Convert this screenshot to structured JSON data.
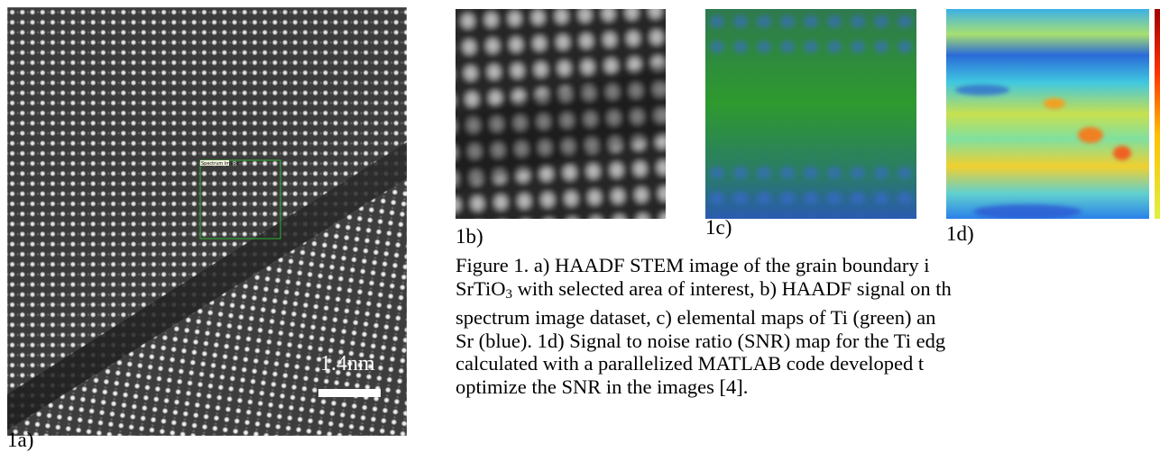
{
  "figure": {
    "panel_a": {
      "box_label": "Spectrum Image",
      "scale_bar": "1.4nm",
      "label": "1a)"
    },
    "panel_b": {
      "label": "1b)"
    },
    "panel_c": {
      "label": "1c)"
    },
    "panel_d": {
      "label": "1d)"
    }
  },
  "caption": {
    "line1": "Figure 1. a) HAADF STEM image of the grain boundary i",
    "line2": {
      "before": "SrTiO",
      "sub": "3",
      "after": " with selected area of interest, b) HAADF signal on th"
    },
    "line3": "spectrum image dataset, c) elemental maps of Ti (green) an",
    "line4": "Sr (blue). 1d) Signal to noise ratio (SNR) map for the Ti edg",
    "line5": "calculated with a parallelized MATLAB code developed t",
    "line6": "optimize the SNR in the images [4]."
  }
}
